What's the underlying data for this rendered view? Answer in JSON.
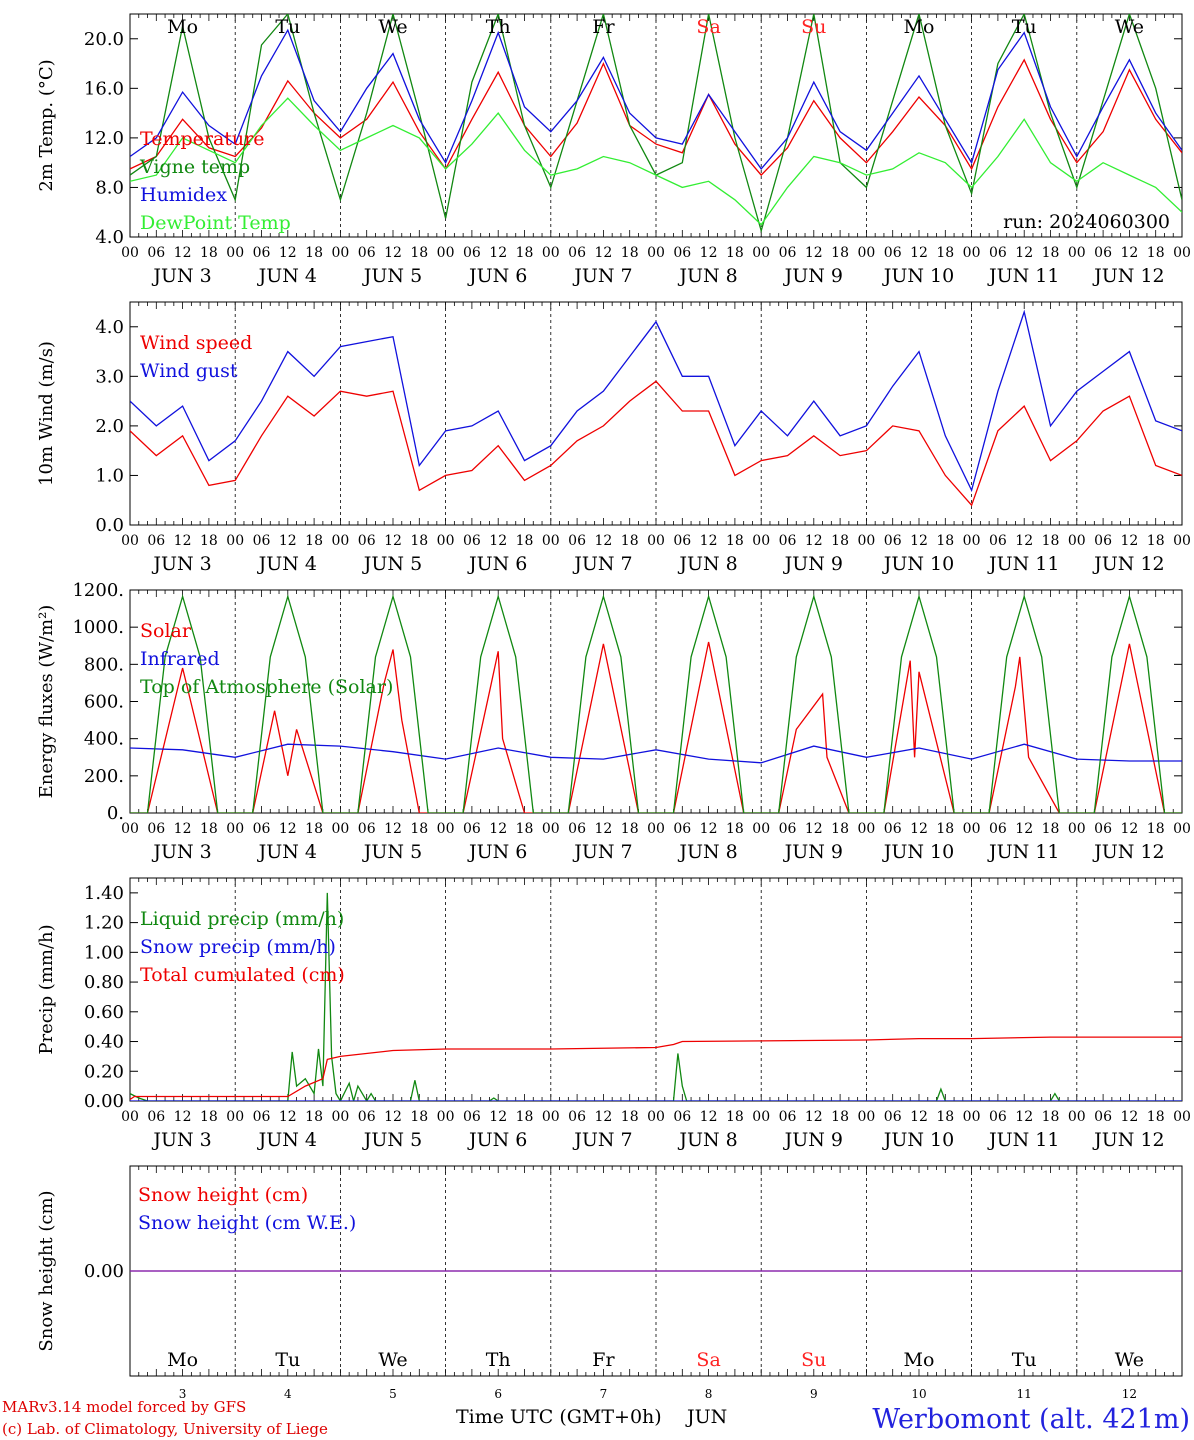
{
  "run_label": "run: 2024060300",
  "footer": {
    "model": "MARv3.14 model forced by GFS",
    "copyright": "(c) Lab. of Climatology, University of Liege",
    "xlabel": "Time UTC (GMT+0h)",
    "month": "JUN",
    "station": "Werbomont (alt. 421m)"
  },
  "days": [
    {
      "date": 3,
      "weekday": "Mo",
      "weekend": false
    },
    {
      "date": 4,
      "weekday": "Tu",
      "weekend": false
    },
    {
      "date": 5,
      "weekday": "We",
      "weekend": false
    },
    {
      "date": 6,
      "weekday": "Th",
      "weekend": false
    },
    {
      "date": 7,
      "weekday": "Fr",
      "weekend": false
    },
    {
      "date": 8,
      "weekday": "Sa",
      "weekend": true
    },
    {
      "date": 9,
      "weekday": "Su",
      "weekend": true
    },
    {
      "date": 10,
      "weekday": "Mo",
      "weekend": false
    },
    {
      "date": 11,
      "weekday": "Tu",
      "weekend": false
    },
    {
      "date": 12,
      "weekday": "We",
      "weekend": false
    }
  ],
  "hour_ticks": [
    "00",
    "06",
    "12",
    "18"
  ],
  "hour_end": "00",
  "colors": {
    "red": "#ee0000",
    "green": "#118811",
    "blue": "#1111dd",
    "lime": "#33ee33",
    "purple": "#8822aa",
    "weekend": "#ff2222",
    "station": "#2222dd"
  },
  "chart_data": [
    {
      "type": "line",
      "id": "temp",
      "ylabel": "2m Temp. (°C)",
      "ylim": [
        4.0,
        22.0
      ],
      "yticks": [
        4.0,
        8.0,
        12.0,
        16.0,
        20.0
      ],
      "ytick_labels": [
        "4.0",
        "8.0",
        "12.0",
        "16.0",
        "20.0"
      ],
      "x_unit": "hours since JUN 3 00 UTC",
      "series": [
        {
          "name": "Temperature",
          "color": "#ee0000",
          "x": [
            0,
            6,
            12,
            18,
            24,
            30,
            36,
            42,
            48,
            54,
            60,
            66,
            72,
            78,
            84,
            90,
            96,
            102,
            108,
            114,
            120,
            126,
            132,
            138,
            144,
            150,
            156,
            162,
            168,
            174,
            180,
            186,
            192,
            198,
            204,
            210,
            216,
            222,
            228,
            234,
            240
          ],
          "y": [
            9.5,
            10.5,
            13.5,
            11.2,
            10.5,
            12.8,
            16.6,
            14.0,
            12.0,
            13.5,
            16.5,
            12.5,
            9.5,
            13.5,
            17.3,
            13.0,
            10.5,
            13.2,
            18.0,
            13.0,
            11.5,
            10.8,
            15.5,
            11.5,
            9.0,
            11.2,
            15.0,
            12.0,
            10.0,
            12.5,
            15.3,
            13.0,
            9.5,
            14.5,
            18.3,
            13.5,
            10.0,
            12.5,
            17.5,
            13.5,
            10.8
          ]
        },
        {
          "name": "Vigne temp",
          "color": "#118811",
          "x": [
            0,
            6,
            12,
            18,
            24,
            30,
            36,
            42,
            48,
            54,
            60,
            66,
            72,
            78,
            84,
            90,
            96,
            102,
            108,
            114,
            120,
            126,
            132,
            138,
            144,
            150,
            156,
            162,
            168,
            174,
            180,
            186,
            192,
            198,
            204,
            210,
            216,
            222,
            228,
            234,
            240
          ],
          "y": [
            9.0,
            10.5,
            21.0,
            12.0,
            7.0,
            19.5,
            22.0,
            14.0,
            7.0,
            14.0,
            22.0,
            14.0,
            5.5,
            16.5,
            22.0,
            13.0,
            8.0,
            15.0,
            22.0,
            13.0,
            9.0,
            10.0,
            22.0,
            12.0,
            4.5,
            12.0,
            22.0,
            10.0,
            8.0,
            15.0,
            22.0,
            13.0,
            7.5,
            18.0,
            22.0,
            14.0,
            8.0,
            15.0,
            22.0,
            16.0,
            7.0
          ]
        },
        {
          "name": "Humidex",
          "color": "#1111dd",
          "x": [
            0,
            6,
            12,
            18,
            24,
            30,
            36,
            42,
            48,
            54,
            60,
            66,
            72,
            78,
            84,
            90,
            96,
            102,
            108,
            114,
            120,
            126,
            132,
            138,
            144,
            150,
            156,
            162,
            168,
            174,
            180,
            186,
            192,
            198,
            204,
            210,
            216,
            222,
            228,
            234,
            240
          ],
          "y": [
            10.5,
            12.0,
            15.7,
            13.0,
            11.5,
            17.0,
            20.7,
            15.0,
            12.5,
            16.0,
            18.8,
            13.5,
            10.0,
            15.0,
            20.5,
            14.5,
            12.5,
            15.0,
            18.5,
            14.0,
            12.0,
            11.5,
            15.5,
            12.5,
            9.5,
            12.0,
            16.5,
            12.5,
            11.0,
            14.0,
            17.0,
            13.5,
            10.0,
            17.5,
            20.5,
            14.5,
            10.5,
            14.5,
            18.3,
            14.0,
            11.0
          ]
        },
        {
          "name": "DewPoint Temp",
          "color": "#33ee33",
          "x": [
            0,
            6,
            12,
            18,
            24,
            30,
            36,
            42,
            48,
            54,
            60,
            66,
            72,
            78,
            84,
            90,
            96,
            102,
            108,
            114,
            120,
            126,
            132,
            138,
            144,
            150,
            156,
            162,
            168,
            174,
            180,
            186,
            192,
            198,
            204,
            210,
            216,
            222,
            228,
            234,
            240
          ],
          "y": [
            8.5,
            9.0,
            12.0,
            11.0,
            10.0,
            13.0,
            15.2,
            13.0,
            11.0,
            12.0,
            13.0,
            12.0,
            9.5,
            11.5,
            14.0,
            11.0,
            9.0,
            9.5,
            10.5,
            10.0,
            9.0,
            8.0,
            8.5,
            7.0,
            5.0,
            8.0,
            10.5,
            10.0,
            9.0,
            9.5,
            10.8,
            10.0,
            8.0,
            10.5,
            13.5,
            10.0,
            8.5,
            10.0,
            9.0,
            8.0,
            6.0
          ]
        }
      ]
    },
    {
      "type": "line",
      "id": "wind",
      "ylabel": "10m Wind (m/s)",
      "ylim": [
        0.0,
        4.5
      ],
      "yticks": [
        0,
        1,
        2,
        3,
        4
      ],
      "ytick_labels": [
        "0.0",
        "1.0",
        "2.0",
        "3.0",
        "4.0"
      ],
      "x_unit": "hours since JUN 3 00 UTC",
      "series": [
        {
          "name": "Wind speed",
          "color": "#ee0000",
          "x": [
            0,
            6,
            12,
            18,
            24,
            30,
            36,
            42,
            48,
            54,
            60,
            66,
            72,
            78,
            84,
            90,
            96,
            102,
            108,
            114,
            120,
            126,
            132,
            138,
            144,
            150,
            156,
            162,
            168,
            174,
            180,
            186,
            192,
            198,
            204,
            210,
            216,
            222,
            228,
            234,
            240
          ],
          "y": [
            1.9,
            1.4,
            1.8,
            0.8,
            0.9,
            1.8,
            2.6,
            2.2,
            2.7,
            2.6,
            2.7,
            0.7,
            1.0,
            1.1,
            1.6,
            0.9,
            1.2,
            1.7,
            2.0,
            2.5,
            2.9,
            2.3,
            2.3,
            1.0,
            1.3,
            1.4,
            1.8,
            1.4,
            1.5,
            2.0,
            1.9,
            1.0,
            0.4,
            1.9,
            2.4,
            1.3,
            1.7,
            2.3,
            2.6,
            1.2,
            1.0
          ]
        },
        {
          "name": "Wind gust",
          "color": "#1111dd",
          "x": [
            0,
            6,
            12,
            18,
            24,
            30,
            36,
            42,
            48,
            54,
            60,
            66,
            72,
            78,
            84,
            90,
            96,
            102,
            108,
            114,
            120,
            126,
            132,
            138,
            144,
            150,
            156,
            162,
            168,
            174,
            180,
            186,
            192,
            198,
            204,
            210,
            216,
            222,
            228,
            234,
            240
          ],
          "y": [
            2.5,
            2.0,
            2.4,
            1.3,
            1.7,
            2.5,
            3.5,
            3.0,
            3.6,
            3.7,
            3.8,
            1.2,
            1.9,
            2.0,
            2.3,
            1.3,
            1.6,
            2.3,
            2.7,
            3.4,
            4.1,
            3.0,
            3.0,
            1.6,
            2.3,
            1.8,
            2.5,
            1.8,
            2.0,
            2.8,
            3.5,
            1.8,
            0.7,
            2.7,
            4.3,
            2.0,
            2.7,
            3.1,
            3.5,
            2.1,
            1.9
          ]
        }
      ]
    },
    {
      "type": "line",
      "id": "energy",
      "ylabel": "Energy fluxes (W/m²)",
      "ylim": [
        0,
        1200
      ],
      "yticks": [
        0,
        200,
        400,
        600,
        800,
        1000,
        1200
      ],
      "ytick_labels": [
        "0.",
        "200.",
        "400.",
        "600.",
        "800.",
        "1000.",
        "1200."
      ],
      "x_unit": "hours since JUN 3 00 UTC",
      "series": [
        {
          "name": "Solar",
          "color": "#ee0000",
          "daily_peak": [
            790,
            550,
            880,
            870,
            910,
            920,
            640,
            820,
            840,
            910
          ],
          "x": [
            0,
            4,
            12,
            20,
            24,
            28,
            33,
            36,
            38,
            44,
            48,
            52,
            58,
            60,
            62,
            66,
            72,
            76,
            82,
            84,
            85,
            90,
            96,
            100,
            108,
            116,
            120,
            124,
            132,
            140,
            144,
            148,
            152,
            158,
            159,
            164,
            168,
            172,
            178,
            179,
            180,
            188,
            192,
            196,
            202,
            203,
            205,
            212,
            216,
            220,
            228,
            236,
            240
          ],
          "y": [
            0,
            0,
            780,
            0,
            0,
            0,
            550,
            200,
            450,
            0,
            0,
            0,
            700,
            880,
            500,
            0,
            0,
            0,
            650,
            870,
            400,
            0,
            0,
            0,
            910,
            0,
            0,
            0,
            920,
            0,
            0,
            0,
            450,
            640,
            300,
            0,
            0,
            0,
            820,
            300,
            760,
            0,
            0,
            0,
            680,
            840,
            300,
            0,
            0,
            0,
            910,
            0,
            0
          ]
        },
        {
          "name": "Infrared",
          "color": "#1111dd",
          "x": [
            0,
            12,
            24,
            36,
            48,
            60,
            72,
            84,
            96,
            108,
            120,
            132,
            144,
            156,
            168,
            180,
            192,
            204,
            216,
            228,
            240
          ],
          "y": [
            350,
            340,
            300,
            370,
            360,
            330,
            290,
            350,
            300,
            290,
            340,
            290,
            270,
            360,
            300,
            350,
            290,
            370,
            290,
            280,
            280
          ]
        },
        {
          "name": "Top of Atmosphere (Solar)",
          "color": "#118811",
          "daily_peak": 1165,
          "x": [
            0,
            4,
            8,
            12,
            16,
            20,
            24
          ],
          "y": [
            0,
            0,
            840,
            1165,
            840,
            0,
            0
          ]
        }
      ]
    },
    {
      "type": "line",
      "id": "precip",
      "ylabel": "Precip (mm/h)",
      "ylim": [
        0.0,
        1.5
      ],
      "yticks": [
        0,
        0.2,
        0.4,
        0.6,
        0.8,
        1.0,
        1.2,
        1.4
      ],
      "ytick_labels": [
        "0.00",
        "0.20",
        "0.40",
        "0.60",
        "0.80",
        "1.00",
        "1.20",
        "1.40"
      ],
      "x_unit": "hours since JUN 3 00 UTC",
      "series": [
        {
          "name": "Liquid precip (mm/h)",
          "color": "#118811",
          "x": [
            0,
            2,
            4,
            36,
            37,
            38,
            40,
            42,
            43,
            44,
            45,
            46,
            47,
            48,
            50,
            51,
            52,
            54,
            55,
            56,
            58,
            64,
            65,
            66,
            82,
            83,
            84,
            124,
            125,
            126,
            127,
            128,
            184,
            185,
            186,
            210,
            211,
            212,
            240
          ],
          "y": [
            0.05,
            0.02,
            0,
            0,
            0.33,
            0.1,
            0.15,
            0.05,
            0.35,
            0.1,
            1.4,
            0.3,
            0.05,
            0,
            0.12,
            0,
            0.1,
            0,
            0.05,
            0,
            0,
            0,
            0.14,
            0,
            0,
            0.02,
            0,
            0,
            0.32,
            0.1,
            0,
            0,
            0,
            0.08,
            0,
            0,
            0.05,
            0,
            0
          ]
        },
        {
          "name": "Snow precip (mm/h)",
          "color": "#1111dd",
          "x": [
            0,
            240
          ],
          "y": [
            0,
            0
          ]
        },
        {
          "name": "Total cumulated (cm)",
          "color": "#ee0000",
          "x": [
            0,
            1,
            36,
            40,
            44,
            45,
            48,
            60,
            72,
            96,
            120,
            124,
            126,
            168,
            180,
            192,
            210,
            240
          ],
          "y": [
            0.01,
            0.03,
            0.03,
            0.1,
            0.15,
            0.28,
            0.3,
            0.34,
            0.35,
            0.35,
            0.36,
            0.38,
            0.4,
            0.41,
            0.42,
            0.42,
            0.43,
            0.43
          ]
        }
      ]
    },
    {
      "type": "line",
      "id": "snow",
      "ylabel": "Snow height (cm)",
      "ylim": [
        -1,
        1
      ],
      "yticks": [
        0
      ],
      "ytick_labels": [
        "0.00"
      ],
      "x_unit": "hours since JUN 3 00 UTC",
      "series": [
        {
          "name": "Snow height (cm)",
          "color": "#ee0000",
          "x": [
            0,
            240
          ],
          "y": [
            0,
            0
          ]
        },
        {
          "name": "Snow height (cm W.E.)",
          "color": "#1111dd",
          "x": [
            0,
            240
          ],
          "y": [
            0,
            0
          ]
        }
      ]
    }
  ]
}
